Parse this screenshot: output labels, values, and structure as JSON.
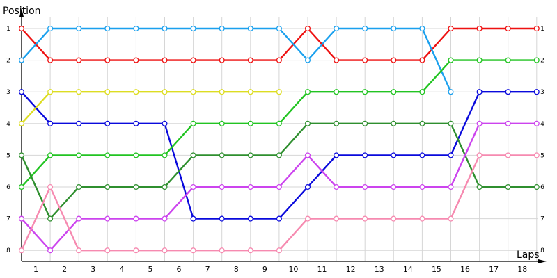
{
  "chart_data": {
    "type": "line",
    "title": "",
    "ylabel": "Position",
    "xlabel": "Laps",
    "x_ticks": [
      "1",
      "2",
      "3",
      "4",
      "5",
      "6",
      "7",
      "8",
      "9",
      "10",
      "11",
      "12",
      "13",
      "14",
      "15",
      "16",
      "17",
      "18"
    ],
    "y_ticks": [
      "1",
      "2",
      "3",
      "4",
      "5",
      "6",
      "7",
      "8"
    ],
    "right_ticks": [
      "1",
      "2",
      "3",
      "4",
      "5",
      "6",
      "7",
      "8"
    ],
    "ylim": [
      1,
      8
    ],
    "y_inverted": true,
    "grid": true,
    "legend": "none",
    "x_positions": [
      0,
      1,
      2,
      3,
      4,
      5,
      6,
      7,
      8,
      9,
      10,
      11,
      12,
      13,
      14,
      15,
      16,
      17,
      18
    ],
    "series": [
      {
        "color": "#ee1111",
        "values": [
          1,
          2,
          2,
          2,
          2,
          2,
          2,
          2,
          2,
          2,
          1,
          2,
          2,
          2,
          2,
          1,
          1,
          1,
          1
        ]
      },
      {
        "color": "#1aa0ee",
        "values": [
          2,
          1,
          1,
          1,
          1,
          1,
          1,
          1,
          1,
          1,
          2,
          1,
          1,
          1,
          1,
          3,
          null,
          null,
          null
        ]
      },
      {
        "color": "#0a0adc",
        "values": [
          3,
          4,
          4,
          4,
          4,
          4,
          7,
          7,
          7,
          7,
          6,
          5,
          5,
          5,
          5,
          5,
          3,
          3,
          3
        ]
      },
      {
        "color": "#dddd22",
        "values": [
          4,
          3,
          3,
          3,
          3,
          3,
          3,
          3,
          3,
          3,
          null,
          null,
          null,
          null,
          null,
          null,
          null,
          null,
          null
        ]
      },
      {
        "color": "#22c422",
        "values": [
          6,
          5,
          5,
          5,
          5,
          5,
          4,
          4,
          4,
          4,
          3,
          3,
          3,
          3,
          3,
          2,
          2,
          2,
          2
        ]
      },
      {
        "color": "#2f8f2f",
        "values": [
          5,
          7,
          6,
          6,
          6,
          6,
          5,
          5,
          5,
          5,
          4,
          4,
          4,
          4,
          4,
          4,
          6,
          6,
          6
        ]
      },
      {
        "color": "#cc44ee",
        "values": [
          7,
          8,
          7,
          7,
          7,
          7,
          6,
          6,
          6,
          6,
          5,
          6,
          6,
          6,
          6,
          6,
          4,
          4,
          4
        ]
      },
      {
        "color": "#f68ab0",
        "values": [
          8,
          6,
          8,
          8,
          8,
          8,
          8,
          8,
          8,
          8,
          7,
          7,
          7,
          7,
          7,
          7,
          5,
          5,
          5
        ]
      }
    ]
  }
}
